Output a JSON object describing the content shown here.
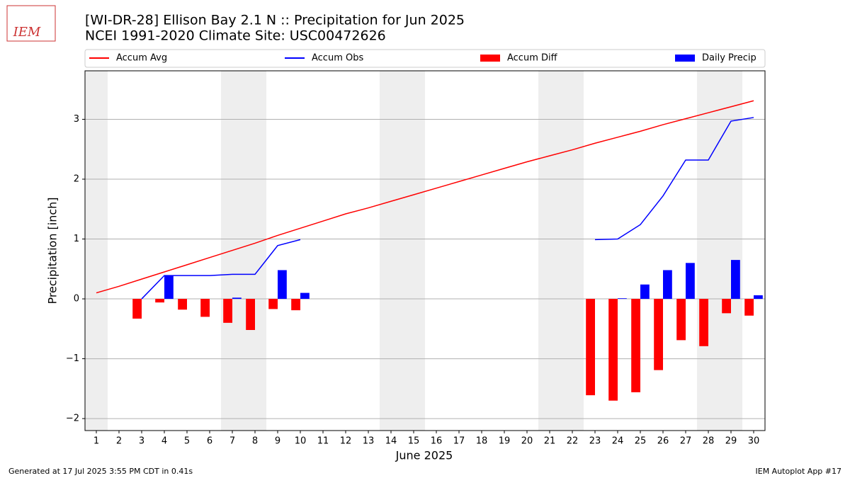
{
  "logo_text": "IEM",
  "footer": {
    "left": "Generated at 17 Jul 2025 3:55 PM CDT in 0.41s",
    "right": "IEM Autoplot App #17"
  },
  "chart_data": {
    "type": "bar-line",
    "title": "[WI-DR-28] Ellison Bay 2.1 N :: Precipitation for Jun 2025",
    "subtitle": "NCEI 1991-2020 Climate Site: USC00472626",
    "x_label": "June 2025",
    "y_label": "Precipitation [inch]",
    "x": [
      1,
      2,
      3,
      4,
      5,
      6,
      7,
      8,
      9,
      10,
      11,
      12,
      13,
      14,
      15,
      16,
      17,
      18,
      19,
      20,
      21,
      22,
      23,
      24,
      25,
      26,
      27,
      28,
      29,
      30
    ],
    "xlim": [
      0.5,
      30.5
    ],
    "xticks": [
      1,
      2,
      3,
      4,
      5,
      6,
      7,
      8,
      9,
      10,
      11,
      12,
      13,
      14,
      15,
      16,
      17,
      18,
      19,
      20,
      21,
      22,
      23,
      24,
      25,
      26,
      27,
      28,
      29,
      30
    ],
    "ylim": [
      -2.2,
      3.81
    ],
    "yticks": [
      {
        "value": -2,
        "label": "−2"
      },
      {
        "value": -1,
        "label": "−1"
      },
      0,
      1,
      2,
      3
    ],
    "grid": true,
    "shaded_days": [
      1,
      7,
      8,
      14,
      15,
      21,
      22,
      28,
      29
    ],
    "series": [
      {
        "name": "Accum Avg",
        "kind": "line",
        "color": "#ff0000",
        "values": [
          0.1,
          0.21,
          0.33,
          0.45,
          0.57,
          0.69,
          0.81,
          0.93,
          1.06,
          1.18,
          1.3,
          1.42,
          1.52,
          1.63,
          1.74,
          1.85,
          1.96,
          2.07,
          2.18,
          2.29,
          2.39,
          2.49,
          2.6,
          2.7,
          2.8,
          2.91,
          3.01,
          3.11,
          3.21,
          3.31
        ]
      },
      {
        "name": "Accum Obs",
        "kind": "line",
        "color": "#0000ff",
        "values": [
          null,
          null,
          0,
          0.39,
          0.39,
          0.39,
          0.41,
          0.41,
          0.89,
          0.99,
          null,
          null,
          null,
          null,
          null,
          null,
          null,
          null,
          null,
          null,
          null,
          null,
          0.99,
          1.0,
          1.24,
          1.72,
          2.32,
          2.32,
          2.97,
          3.03
        ]
      },
      {
        "name": "Accum Diff",
        "kind": "bar",
        "color": "#ff0000",
        "values": [
          null,
          null,
          -0.33,
          -0.06,
          -0.18,
          -0.3,
          -0.4,
          -0.52,
          -0.17,
          -0.19,
          null,
          null,
          null,
          null,
          null,
          null,
          null,
          null,
          null,
          null,
          null,
          null,
          -1.61,
          -1.7,
          -1.56,
          -1.19,
          -0.69,
          -0.79,
          -0.24,
          -0.28
        ]
      },
      {
        "name": "Daily Precip",
        "kind": "bar",
        "color": "#0000ff",
        "values": [
          null,
          null,
          0,
          0.39,
          0,
          0,
          0.02,
          0,
          0.48,
          0.1,
          null,
          null,
          null,
          null,
          null,
          null,
          null,
          null,
          null,
          null,
          null,
          null,
          0,
          0.01,
          0.24,
          0.48,
          0.6,
          0,
          0.65,
          0.06
        ]
      }
    ]
  }
}
